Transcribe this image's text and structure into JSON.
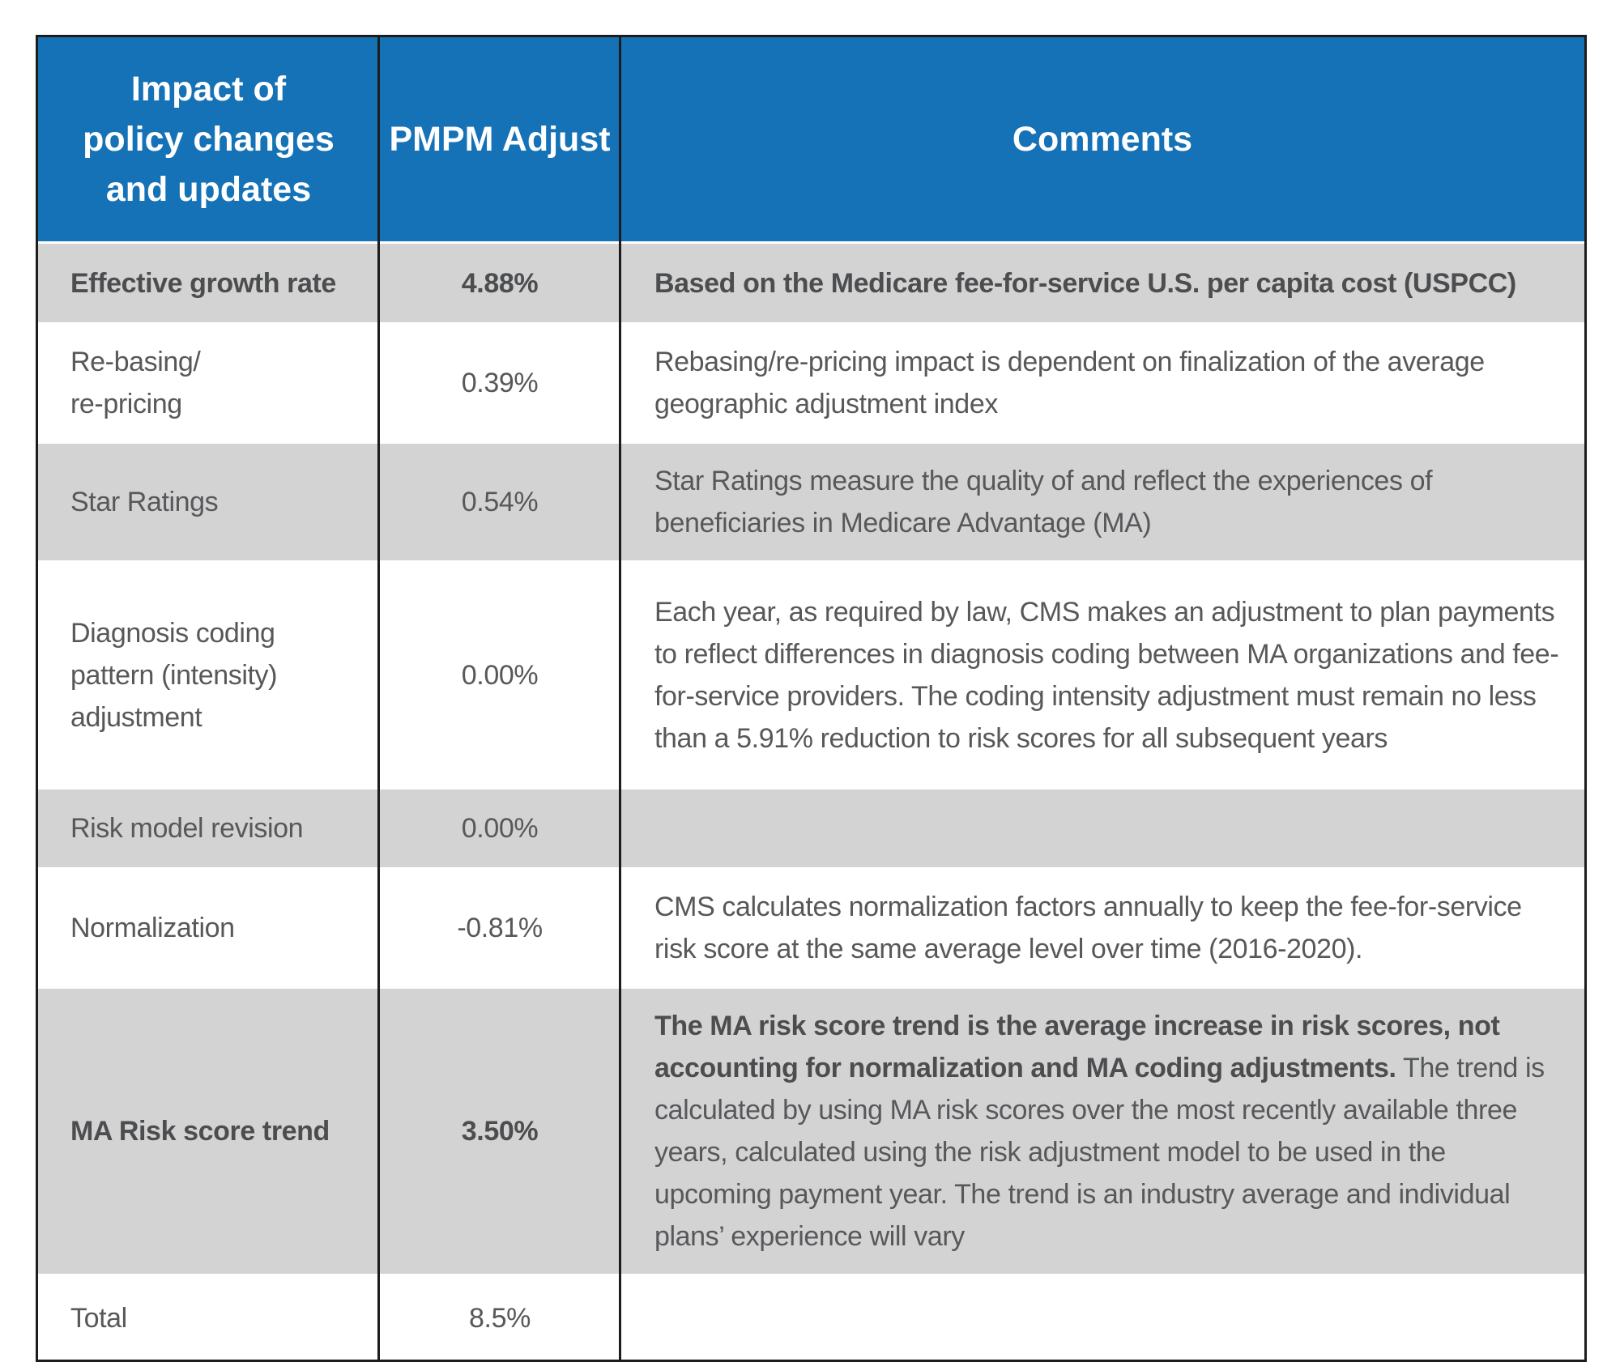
{
  "table": {
    "header": {
      "impact_column": "Impact of\npolicy changes\nand updates",
      "pmpm_column": "PMPM Adjust",
      "comments_column": "Comments"
    },
    "rows": [
      {
        "label": "Effective growth rate",
        "pmpm": "4.88%",
        "comment": "Based on the Medicare fee-for-service U.S. per capita cost (USPCC)",
        "shaded": true,
        "bold": true
      },
      {
        "label": "Re-basing/\nre-pricing",
        "pmpm": "0.39%",
        "comment": "Rebasing/re-pricing impact is dependent on finalization of the average geographic adjustment index",
        "shaded": false,
        "bold": false
      },
      {
        "label": "Star Ratings",
        "pmpm": "0.54%",
        "comment": "Star Ratings measure the quality of and reflect the experiences of beneficiaries in Medicare Advantage (MA)",
        "shaded": true,
        "bold": false
      },
      {
        "label": "Diagnosis coding\npattern (intensity)\nadjustment",
        "pmpm": "0.00%",
        "comment": "Each year, as required by law, CMS makes an adjustment to plan payments to reflect differences in diagnosis coding between MA organizations and fee-for-service providers. The coding intensity adjustment must remain no less than a 5.91% reduction to risk scores for all subsequent years",
        "shaded": false,
        "bold": false
      },
      {
        "label": "Risk model revision",
        "pmpm": "0.00%",
        "comment": "",
        "shaded": true,
        "bold": false
      },
      {
        "label": "Normalization",
        "pmpm": "-0.81%",
        "comment": "CMS calculates normalization factors annually to keep the fee-for-service risk score at the same average level over time (2016-2020).",
        "shaded": false,
        "bold": false
      },
      {
        "label": "MA Risk score trend",
        "pmpm": "3.50%",
        "comment_bold": "The MA risk score trend is the average increase in risk scores, not accounting for normalization and MA coding adjustments.",
        "comment_rest": " The trend is calculated by using MA risk scores over the most recently available three years, calculated using the risk adjustment model to be used in the upcoming payment year. The trend is an industry average and individual plans’ experience will vary",
        "shaded": true,
        "bold": false
      },
      {
        "label": "Total",
        "pmpm": "8.5%",
        "comment": "",
        "shaded": false,
        "bold": false
      }
    ]
  },
  "colors": {
    "header_background": "#1572b6",
    "header_text": "#ffffff",
    "shaded_row_background": "#d3d3d4",
    "row_background": "#ffffff",
    "body_text": "#57585a",
    "bold_text": "#4c4d4f",
    "border": "#1c1c1c"
  }
}
